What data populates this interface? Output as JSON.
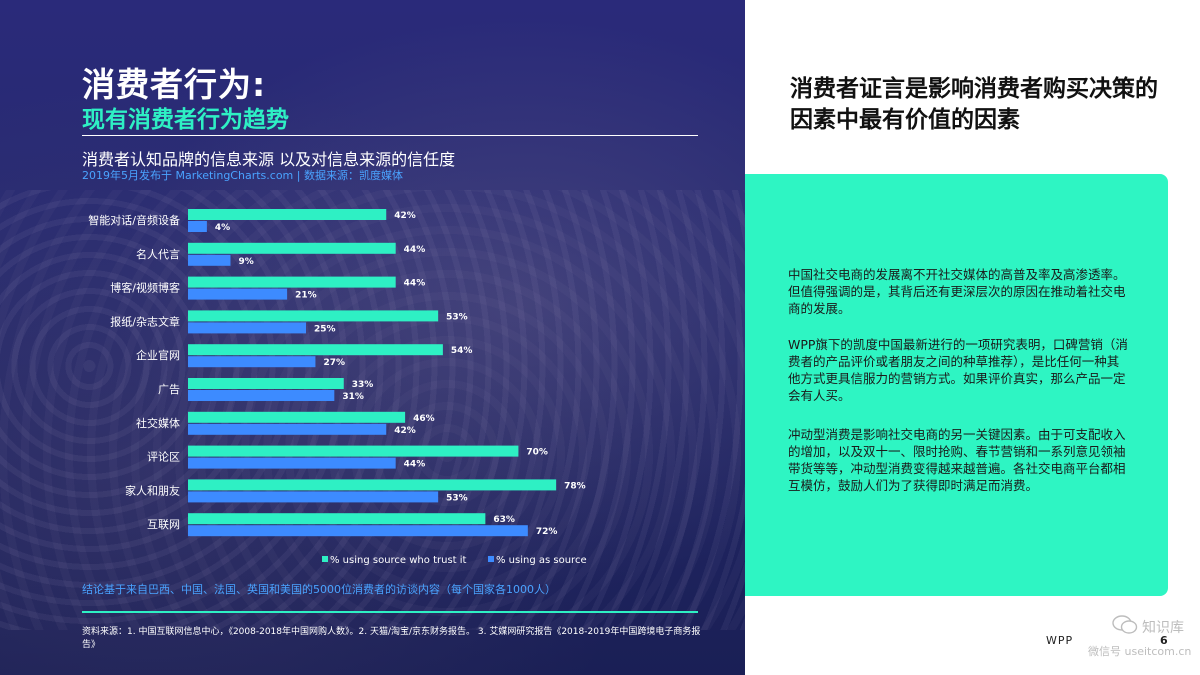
{
  "left": {
    "title": "消费者行为:",
    "subtitle": "现有消费者行为趋势",
    "chart_heading": "消费者认知品牌的信息来源 以及对信息来源的信任度",
    "chart_source_line": "2019年5月发布于 MarketingCharts.com | 数据来源：凯度媒体",
    "conclusion": "结论基于来自巴西、中国、法国、英国和美国的5000位消费者的访谈内容（每个国家各1000人）",
    "sources": "资料来源：1. 中国互联网信息中心，《2008-2018年中国网购人数》。2. 天猫/淘宝/京东财务报告。 3. 艾媒网研究报告《2018-2019年中国跨境电子商务报告》"
  },
  "right": {
    "headline": "消费者证言是影响消费者购买决策的因素中最有价值的因素",
    "paragraphs": [
      "中国社交电商的发展离不开社交媒体的高普及率及高渗透率。但值得强调的是，其背后还有更深层次的原因在推动着社交电商的发展。",
      "WPP旗下的凯度中国最新进行的一项研究表明，口碑营销（消费者的产品评价或者朋友之间的种草推荐），是比任何一种其他方式更具信服力的营销方式。如果评价真实，那么产品一定会有人买。",
      "冲动型消费是影响社交电商的另一关键因素。由于可支配收入的增加，以及双十一、限时抢购、春节营销和一系列意见领袖带货等等，冲动型消费变得越来越普遍。各社交电商平台都相互模仿，鼓励人们为了获得即时满足而消费。"
    ]
  },
  "footer": {
    "brand": "WPP",
    "page_number": "6",
    "watermark_line1": "知识库",
    "watermark_line2": "微信号 useitcom.cn"
  },
  "colors": {
    "trust": "#2ef0c4",
    "use": "#3d8bff",
    "accent": "#2ef5c3",
    "panel": "#242a6e"
  },
  "chart_data": {
    "type": "bar",
    "orientation": "horizontal",
    "title": "消费者认知品牌的信息来源 以及对信息来源的信任度",
    "subtitle": "2019年5月发布于 MarketingCharts.com | 数据来源：凯度媒体",
    "categories": [
      "智能对话/音频设备",
      "名人代言",
      "博客/视频博客",
      "报纸/杂志文章",
      "企业官网",
      "广告",
      "社交媒体",
      "评论区",
      "家人和朋友",
      "互联网"
    ],
    "series": [
      {
        "name": "% using source who trust it",
        "color": "#2ef0c4",
        "values": [
          42,
          44,
          44,
          53,
          54,
          33,
          46,
          70,
          78,
          63
        ]
      },
      {
        "name": "% using as source",
        "color": "#3d8bff",
        "values": [
          4,
          9,
          21,
          25,
          27,
          31,
          42,
          44,
          53,
          72
        ]
      }
    ],
    "value_suffix": "%",
    "xlim": [
      0,
      100
    ],
    "legend_position": "bottom",
    "grid": false
  }
}
